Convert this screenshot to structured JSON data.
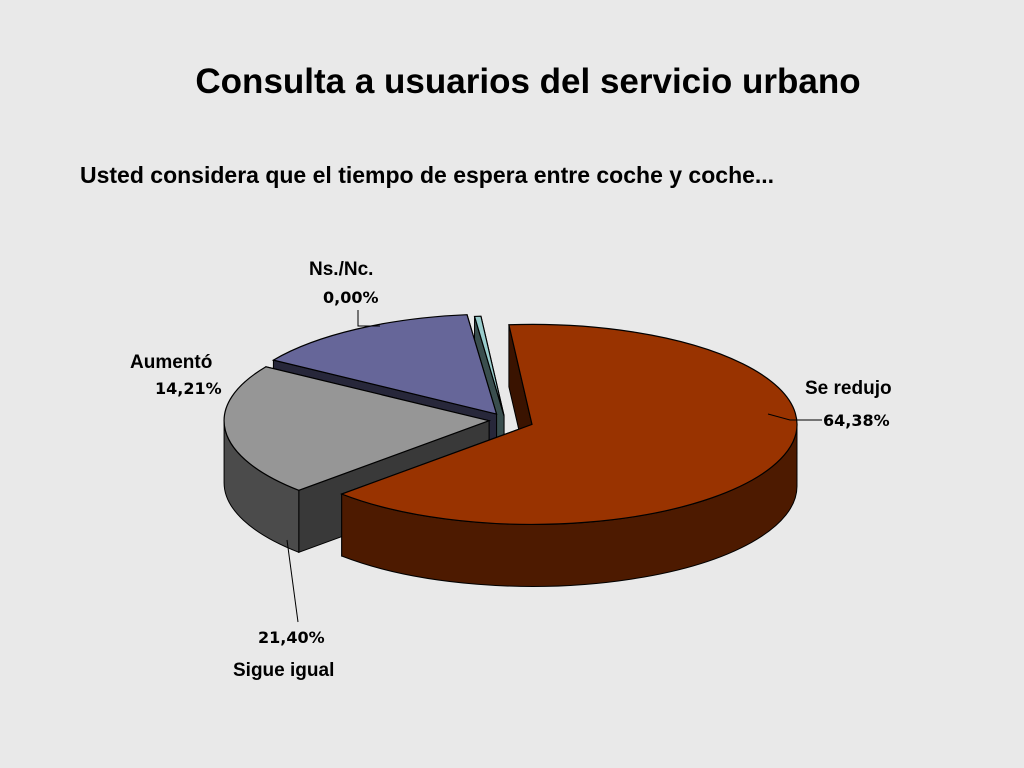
{
  "title": "Consulta a usuarios del servicio urbano",
  "subtitle": "Usted considera que el tiempo de espera entre coche y coche...",
  "chart_data": {
    "type": "pie",
    "three_d": true,
    "exploded": true,
    "slices": [
      {
        "label": "Se redujo",
        "value": 64.38,
        "value_text": "64,38%",
        "color": "#993300"
      },
      {
        "label": "Sigue igual",
        "value": 21.4,
        "value_text": "21,40%",
        "color": "#969696"
      },
      {
        "label": "Aumentó",
        "value": 14.21,
        "value_text": "14,21%",
        "color": "#666699"
      },
      {
        "label": "Ns./Nc.",
        "value": 0.0,
        "value_text": "0,00%",
        "color": "#99cccc"
      }
    ]
  }
}
